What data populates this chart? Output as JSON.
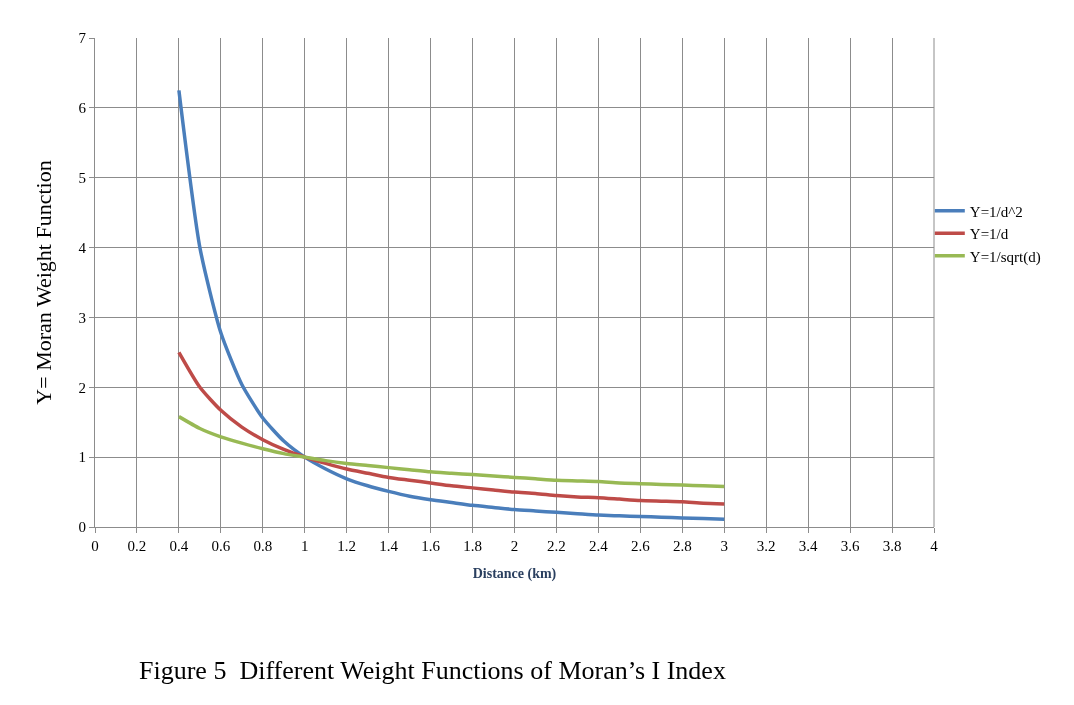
{
  "chart_data": {
    "type": "line",
    "xlabel": "Distance (km)",
    "ylabel": "Y= Moran Weight Function",
    "annotations": [
      "Figure 5  Different Weight Functions of Moran’s I Index"
    ],
    "x": [
      0.4,
      0.5,
      0.6,
      0.7,
      0.8,
      0.9,
      1.0,
      1.1,
      1.2,
      1.3,
      1.4,
      1.5,
      1.6,
      1.7,
      1.8,
      1.9,
      2.0,
      2.1,
      2.2,
      2.3,
      2.4,
      2.5,
      2.6,
      2.7,
      2.8,
      2.9,
      3.0
    ],
    "series": [
      {
        "name": "Y=1/d^2",
        "color": "#4a7ebb",
        "values": [
          6.25,
          4.0,
          2.78,
          2.04,
          1.56,
          1.23,
          1.0,
          0.83,
          0.69,
          0.59,
          0.51,
          0.44,
          0.39,
          0.35,
          0.31,
          0.28,
          0.25,
          0.23,
          0.21,
          0.19,
          0.17,
          0.16,
          0.15,
          0.14,
          0.13,
          0.12,
          0.11
        ]
      },
      {
        "name": "Y=1/d",
        "color": "#be4b48",
        "values": [
          2.5,
          2.0,
          1.67,
          1.43,
          1.25,
          1.11,
          1.0,
          0.91,
          0.83,
          0.77,
          0.71,
          0.67,
          0.63,
          0.59,
          0.56,
          0.53,
          0.5,
          0.48,
          0.45,
          0.43,
          0.42,
          0.4,
          0.38,
          0.37,
          0.36,
          0.34,
          0.33
        ]
      },
      {
        "name": "Y=1/sqrt(d)",
        "color": "#98b954",
        "values": [
          1.58,
          1.41,
          1.29,
          1.2,
          1.12,
          1.05,
          1.0,
          0.95,
          0.91,
          0.88,
          0.85,
          0.82,
          0.79,
          0.77,
          0.75,
          0.73,
          0.71,
          0.69,
          0.67,
          0.66,
          0.65,
          0.63,
          0.62,
          0.61,
          0.6,
          0.59,
          0.58
        ]
      }
    ],
    "xlim": [
      0,
      4
    ],
    "xticks": [
      0,
      0.2,
      0.4,
      0.6,
      0.8,
      1,
      1.2,
      1.4,
      1.6,
      1.8,
      2,
      2.2,
      2.4,
      2.6,
      2.8,
      3,
      3.2,
      3.4,
      3.6,
      3.8,
      4
    ],
    "ylim": [
      0,
      7
    ],
    "yticks": [
      0,
      1,
      2,
      3,
      4,
      5,
      6,
      7
    ],
    "grid": true,
    "legend": "right",
    "marker": "none",
    "line_style": "solid"
  }
}
